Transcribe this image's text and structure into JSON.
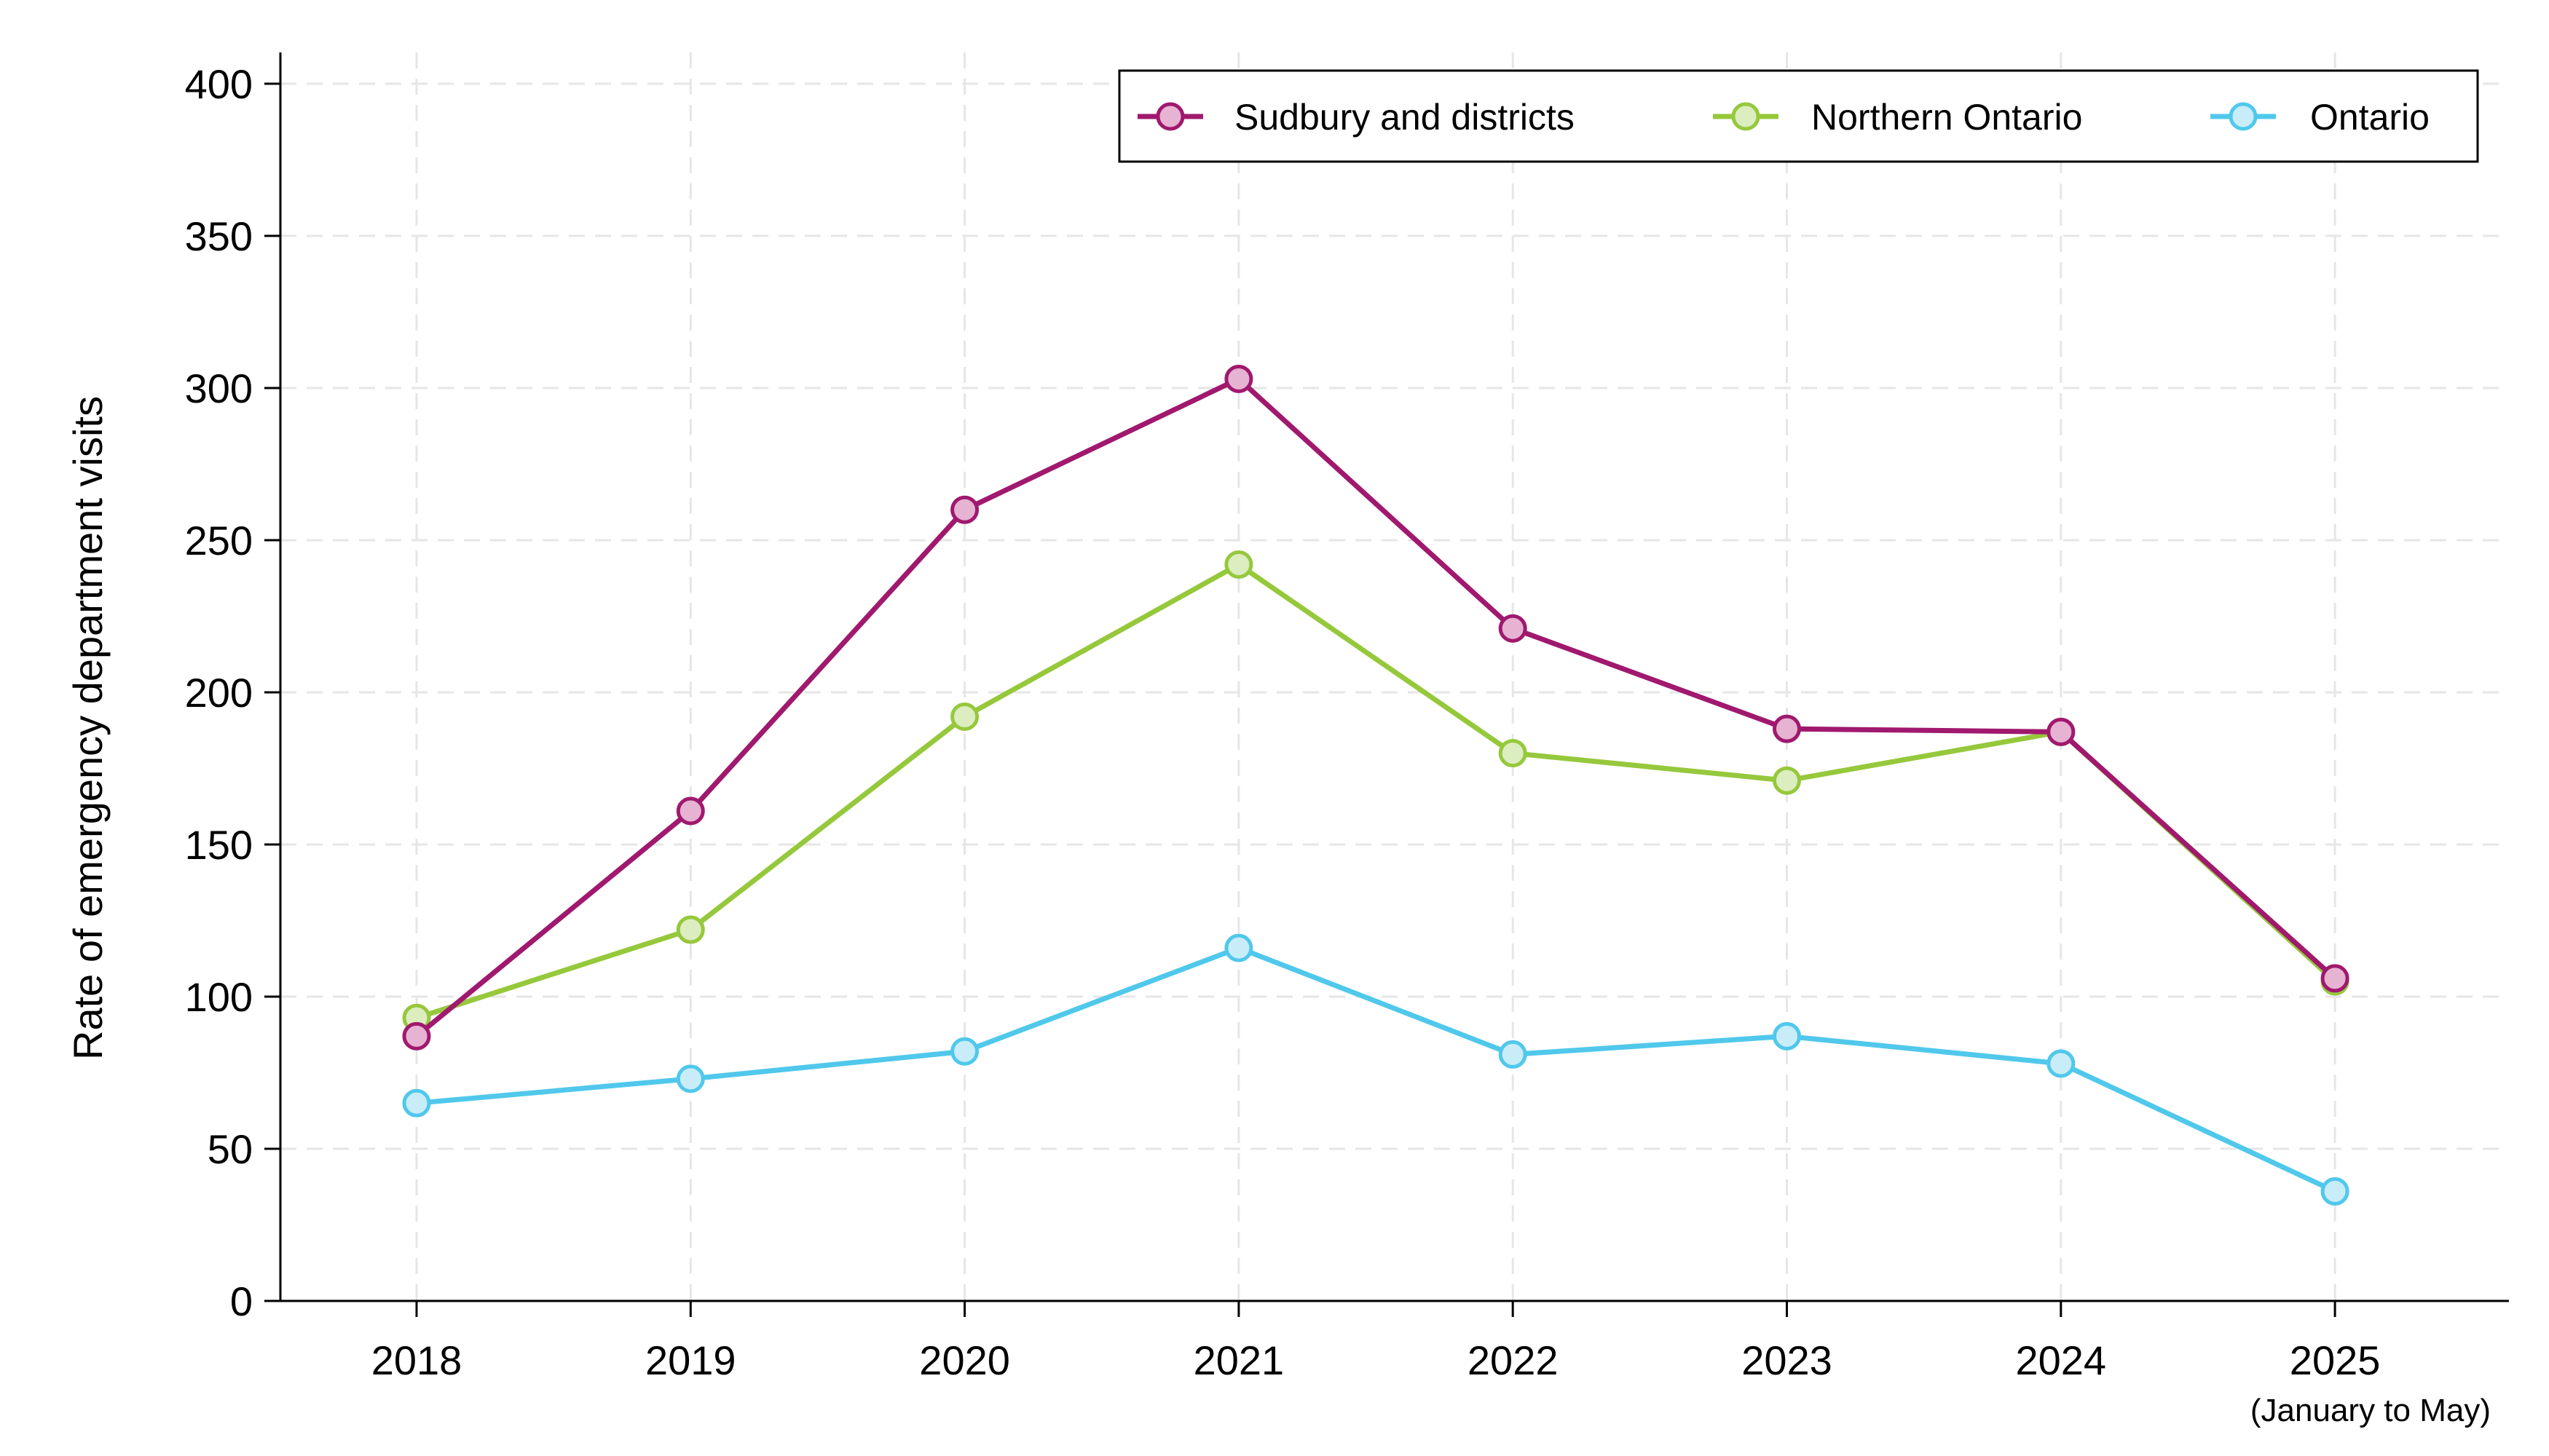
{
  "chart_data": {
    "type": "line",
    "title": "",
    "xlabel": "",
    "ylabel": "Rate of emergency department visits",
    "categories": [
      "2018",
      "2019",
      "2020",
      "2021",
      "2022",
      "2023",
      "2024",
      "2025"
    ],
    "category_note": "(January to May)",
    "ylim": [
      0,
      400
    ],
    "yticks": [
      0,
      50,
      100,
      150,
      200,
      250,
      300,
      350,
      400
    ],
    "grid": true,
    "legend_position": "top-right",
    "series": [
      {
        "name": "Sudbury and districts",
        "color": "#a0196e",
        "fill": "#e6b3d2",
        "values": [
          87,
          161,
          260,
          303,
          221,
          188,
          187,
          106
        ]
      },
      {
        "name": "Northern Ontario",
        "color": "#96c83c",
        "fill": "#dcedc0",
        "values": [
          93,
          122,
          192,
          242,
          180,
          171,
          187,
          105
        ]
      },
      {
        "name": "Ontario",
        "color": "#50c8eb",
        "fill": "#c8edf9",
        "values": [
          65,
          73,
          82,
          116,
          81,
          87,
          78,
          36
        ]
      }
    ]
  }
}
